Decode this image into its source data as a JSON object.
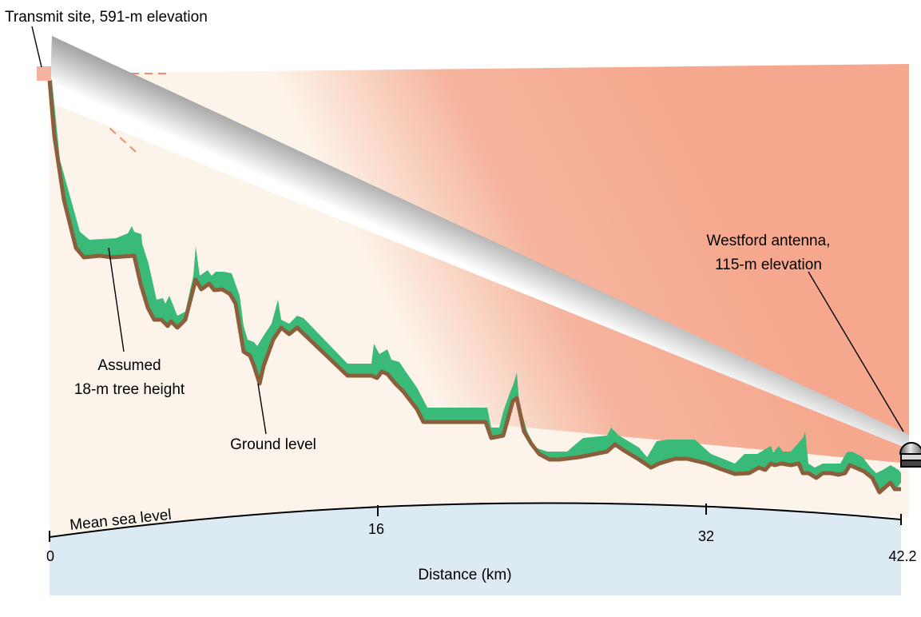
{
  "labels": {
    "transmit_site": "Transmit site, 591-m elevation",
    "westford_line1": "Westford antenna,",
    "westford_line2": "115-m elevation",
    "tree_line1": "Assumed",
    "tree_line2": "18-m tree height",
    "ground_level": "Ground level",
    "sea_level": "Mean sea level",
    "x_axis_title": "Distance (km)"
  },
  "axis": {
    "ticks": [
      "0",
      "16",
      "32",
      "42.2"
    ]
  },
  "colors": {
    "background_land": "#fcf4ea",
    "sea": "#dceaf3",
    "coverage_orange": "#f4a084",
    "beam_gray": "#888888",
    "tree_canopy": "#3aba78",
    "ground": "#8b5e3c",
    "transmitter": "#f6b2a0"
  }
}
